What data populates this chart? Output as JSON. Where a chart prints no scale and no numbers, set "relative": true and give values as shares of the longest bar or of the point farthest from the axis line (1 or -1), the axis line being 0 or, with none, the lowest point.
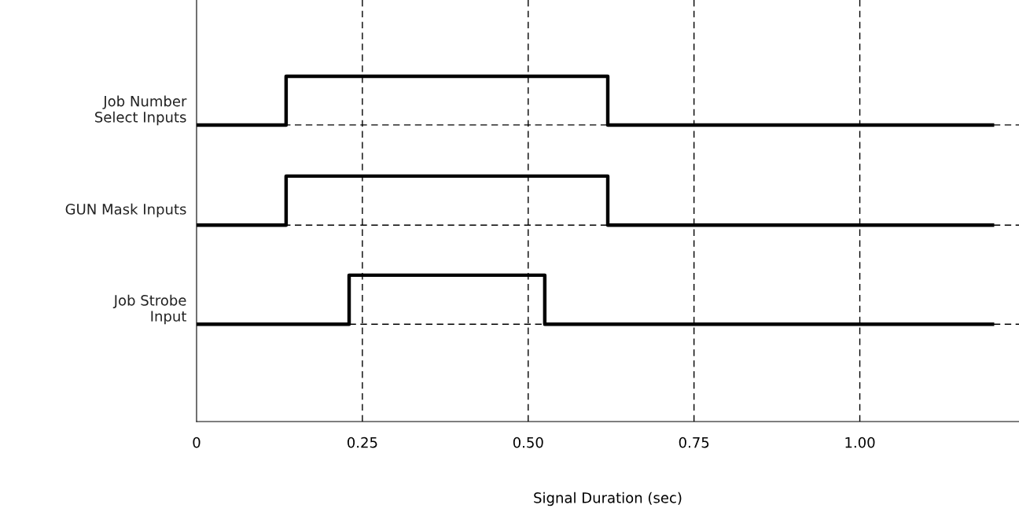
{
  "chart_data": {
    "type": "step",
    "relative": true,
    "xlabel": "Signal Duration (sec)",
    "xlim": [
      0,
      1.24
    ],
    "xticks": [
      0,
      0.25,
      {
        "value": 0.5,
        "label": "0.50"
      },
      0.75,
      {
        "value": 1.0,
        "label": "1.00"
      }
    ],
    "grid": "x",
    "marker": "none",
    "line_style": "solid",
    "legend": false,
    "series": [
      {
        "name": "Job Number\nSelect Inputs",
        "color": "#000000",
        "x": [
          0,
          0.135,
          0.62,
          1.2
        ],
        "values": [
          0.859,
          1,
          0.859,
          0.859
        ]
      },
      {
        "name": "GUN Mask Inputs",
        "color": "#000000",
        "x": [
          0,
          0.135,
          0.62,
          1.2
        ],
        "values": [
          0.569,
          0.711,
          0.569,
          0.569
        ]
      },
      {
        "name": "Job Strobe\nInput",
        "color": "#000000",
        "x": [
          0,
          0.23,
          0.525,
          1.2
        ],
        "values": [
          0.282,
          0.424,
          0.282,
          0.282
        ]
      }
    ],
    "ref_lines": [
      {
        "axis": "y",
        "value": 0.859,
        "label": null,
        "color": "#000000",
        "line_style": "dashed"
      },
      {
        "axis": "y",
        "value": 0.569,
        "label": null,
        "color": "#000000",
        "line_style": "dashed"
      },
      {
        "axis": "y",
        "value": 0.282,
        "label": null,
        "color": "#000000",
        "line_style": "dashed"
      }
    ]
  }
}
